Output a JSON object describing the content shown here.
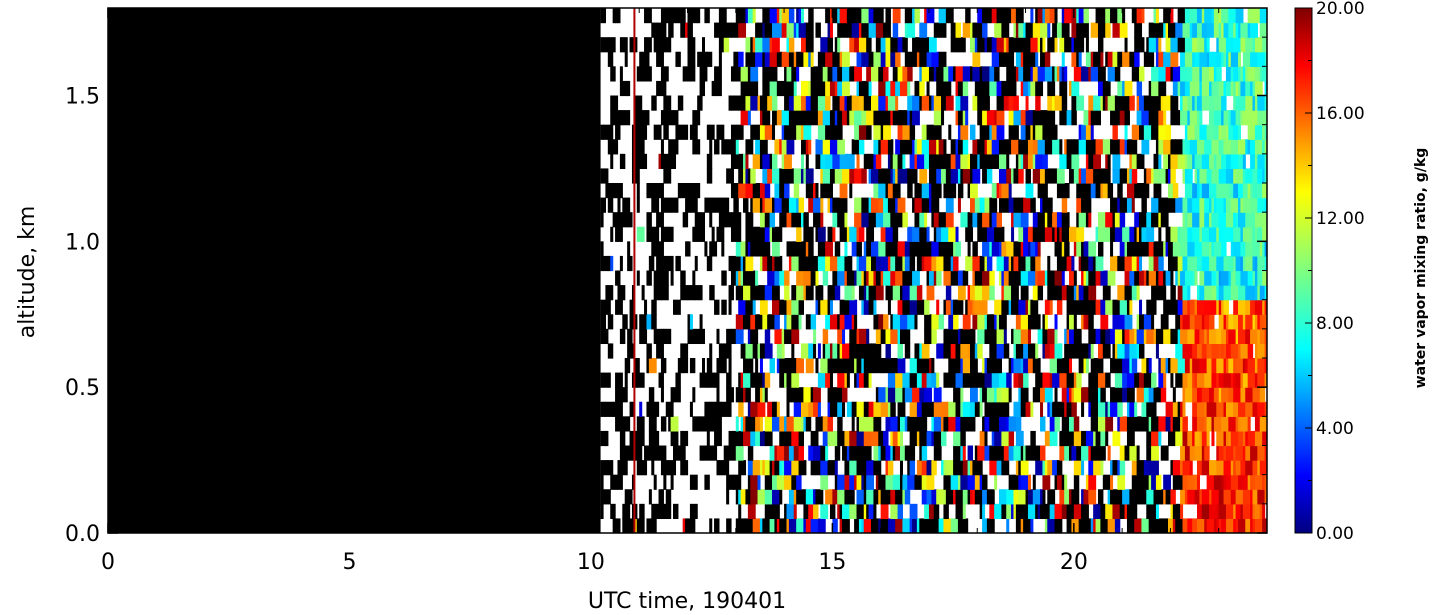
{
  "chart_data": {
    "type": "heatmap",
    "title": "",
    "xlabel": "UTC time, 190401",
    "ylabel": "altitude, km",
    "xlim": [
      0,
      24
    ],
    "ylim": [
      0,
      1.8
    ],
    "x_ticks": [
      0,
      5,
      10,
      15,
      20
    ],
    "x_tick_labels": [
      "0",
      "5",
      "10",
      "15",
      "20"
    ],
    "y_ticks": [
      0.0,
      0.5,
      1.0,
      1.5
    ],
    "y_tick_labels": [
      "0.0",
      "0.5",
      "1.0",
      "1.5"
    ],
    "colorbar": {
      "label": "water vapor mixing ratio, g/kg",
      "range": [
        0,
        20
      ],
      "ticks": [
        0,
        4,
        8,
        12,
        16,
        20
      ],
      "tick_labels": [
        "0.00",
        "4.00",
        "8.00",
        "12.00",
        "16.00",
        "20.00"
      ],
      "colormap": "jet"
    },
    "regions": [
      {
        "x_range": [
          0,
          10.2
        ],
        "description": "no data (black)"
      },
      {
        "x_range": [
          10.2,
          13
        ],
        "description": "sparse data, mostly missing/white"
      },
      {
        "x_range": [
          13,
          22
        ],
        "description": "noisy mixed values 0-20 g/kg with gaps"
      },
      {
        "x_range": [
          22.2,
          24
        ],
        "description": "coherent field: ~14-18 g/kg below 0.8 km, ~6-10 g/kg above"
      }
    ],
    "grid": false
  },
  "colors": {
    "missing": "#000000",
    "background": "#ffffff"
  }
}
